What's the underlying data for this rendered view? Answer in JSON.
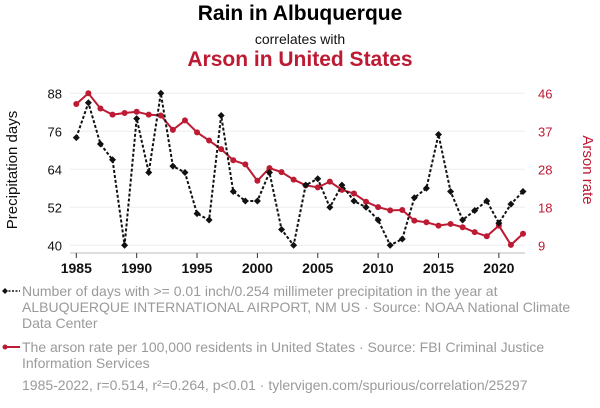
{
  "header": {
    "title": "Rain in Albuquerque",
    "subtitle": "correlates with",
    "title2": "Arson in United States"
  },
  "colors": {
    "series1": "#111111",
    "series2": "#bd1a33",
    "grid": "#eeeeee",
    "legend_text": "#9a9a9a"
  },
  "legend": {
    "series1": "Number of days with >= 0.01 inch/0.254 millimeter precipitation in the year at ALBUQUERQUE INTERNATIONAL AIRPORT, NM US · Source: NOAA National Climate Data Center",
    "series2": "The arson rate per 100,000 residents in United States · Source: FBI Criminal Justice Information Services",
    "footer": "1985-2022, r=0.514, r²=0.264, p<0.01 · tylervigen.com/spurious/correlation/25297"
  },
  "chart_data": {
    "type": "line",
    "title": "Rain in Albuquerque correlates with Arson in United States",
    "xlabel": "",
    "x": [
      1985,
      1986,
      1987,
      1988,
      1989,
      1990,
      1991,
      1992,
      1993,
      1994,
      1995,
      1996,
      1997,
      1998,
      1999,
      2000,
      2001,
      2002,
      2003,
      2004,
      2005,
      2006,
      2007,
      2008,
      2009,
      2010,
      2011,
      2012,
      2013,
      2014,
      2015,
      2016,
      2017,
      2018,
      2019,
      2020,
      2021,
      2022
    ],
    "xlim": [
      1984.5,
      2022.5
    ],
    "xticks": [
      1985,
      1990,
      1995,
      2000,
      2005,
      2010,
      2015,
      2020
    ],
    "grid": true,
    "legend_position": "bottom",
    "series": [
      {
        "name": "Precipitation days",
        "axis": "left",
        "style": "dashed with diamond markers",
        "values": [
          74,
          85,
          72,
          67,
          40,
          80,
          63,
          88,
          65,
          63,
          50,
          48,
          81,
          57,
          54,
          54,
          63,
          45,
          40,
          59,
          61,
          52,
          59,
          54,
          52,
          48,
          40,
          42,
          55,
          58,
          75,
          57,
          48,
          51,
          54,
          47,
          53,
          57
        ]
      },
      {
        "name": "Arson rate",
        "axis": "right",
        "style": "solid with circle markers",
        "values": [
          43.4,
          46,
          42.3,
          40.8,
          41.2,
          41.5,
          40.8,
          40.6,
          37.1,
          39.4,
          36.5,
          34.5,
          32.4,
          29.7,
          28.7,
          24.7,
          27.8,
          26.8,
          25,
          23.6,
          23.1,
          24.5,
          22.5,
          21.6,
          19.6,
          18.3,
          17.5,
          17.6,
          15,
          14.6,
          13.8,
          14.2,
          13.4,
          12.2,
          11.2,
          13.8,
          9.1,
          11.8
        ]
      }
    ],
    "y_left": {
      "label": "Precipitation days",
      "ylim": [
        40,
        88
      ],
      "ticks": [
        40,
        52,
        64,
        76,
        88
      ]
    },
    "y_right": {
      "label": "Arson rate",
      "ylim": [
        9,
        46
      ],
      "ticks": [
        9,
        18,
        28,
        37,
        46
      ]
    }
  }
}
